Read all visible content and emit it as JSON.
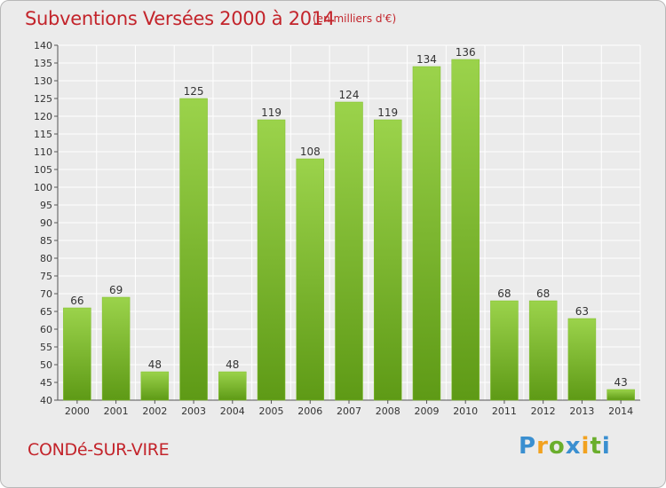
{
  "chart_data": {
    "type": "bar",
    "title": "Subventions Versées 2000 à 2014",
    "subtitle": "(en milliers d'€)",
    "categories": [
      "2000",
      "2001",
      "2002",
      "2003",
      "2004",
      "2005",
      "2006",
      "2007",
      "2008",
      "2009",
      "2010",
      "2011",
      "2012",
      "2013",
      "2014"
    ],
    "values": [
      66,
      69,
      48,
      125,
      48,
      119,
      108,
      124,
      119,
      134,
      136,
      68,
      68,
      63,
      43
    ],
    "ylim": [
      40,
      140
    ],
    "ytick_step": 5,
    "grid": true,
    "bar_color_top": "#9bd34b",
    "bar_color_bottom": "#5e9a16"
  },
  "footer": {
    "location": "CONDé-SUR-VIRE",
    "logo_text": "Proxiti",
    "logo_colors": [
      "#3a8fd0",
      "#f2a21f",
      "#6aae2c",
      "#3a8fd0",
      "#f2a21f",
      "#6aae2c",
      "#3a8fd0"
    ]
  }
}
